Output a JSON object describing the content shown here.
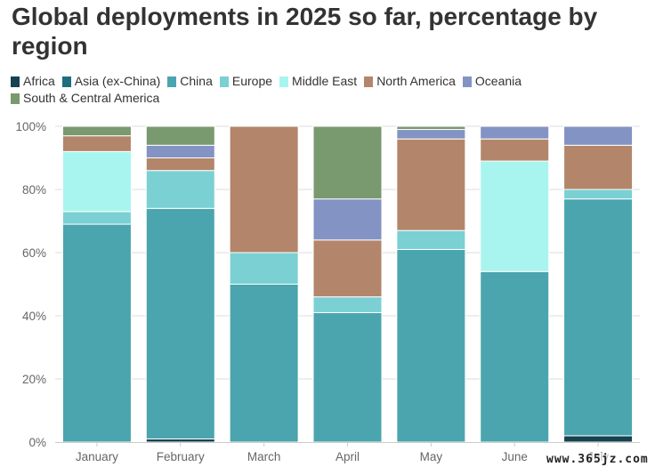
{
  "watermark": "www.365jz.com",
  "chart_data": {
    "type": "bar",
    "stacked": true,
    "title": "Global deployments in 2025 so far, percentage by region",
    "xlabel": "",
    "ylabel": "",
    "ylim": [
      0,
      100
    ],
    "y_ticks": [
      "0%",
      "20%",
      "40%",
      "60%",
      "80%",
      "100%"
    ],
    "grid": true,
    "legend_position": "top-left",
    "categories": [
      "January",
      "February",
      "March",
      "April",
      "May",
      "June",
      "July"
    ],
    "series": [
      {
        "name": "Africa",
        "color": "#17424f",
        "values": [
          0,
          1,
          0,
          0,
          0,
          0,
          2
        ]
      },
      {
        "name": "Asia (ex-China)",
        "color": "#1d6f7d",
        "values": [
          0,
          0,
          0,
          0,
          0,
          0,
          0
        ]
      },
      {
        "name": "China",
        "color": "#4aa5ae",
        "values": [
          69,
          73,
          50,
          41,
          61,
          54,
          75
        ]
      },
      {
        "name": "Europe",
        "color": "#7bd0d3",
        "values": [
          4,
          12,
          10,
          5,
          6,
          0,
          3
        ]
      },
      {
        "name": "Middle East",
        "color": "#a8f5ef",
        "values": [
          19,
          0,
          0,
          0,
          0,
          35,
          0
        ]
      },
      {
        "name": "North America",
        "color": "#b3856a",
        "values": [
          5,
          4,
          40,
          18,
          29,
          7,
          14
        ]
      },
      {
        "name": "Oceania",
        "color": "#8393c3",
        "values": [
          0,
          4,
          0,
          13,
          3,
          4,
          6
        ]
      },
      {
        "name": "South & Central America",
        "color": "#79996f",
        "values": [
          3,
          6,
          0,
          23,
          1,
          0,
          0
        ]
      }
    ]
  }
}
